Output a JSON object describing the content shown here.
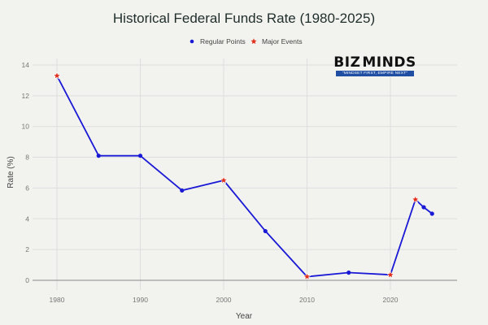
{
  "chart_data": {
    "type": "line",
    "title": "Historical Federal Funds Rate (1980-2025)",
    "xlabel": "Year",
    "ylabel": "Rate (%)",
    "xlim": [
      1977,
      2028
    ],
    "ylim": [
      0,
      14
    ],
    "x_ticks": [
      1980,
      1990,
      2000,
      2010,
      2020
    ],
    "y_ticks": [
      0,
      2,
      4,
      6,
      8,
      10,
      12,
      14
    ],
    "grid": true,
    "legend_position": "top",
    "legend": [
      {
        "label": "Regular Points",
        "marker": "circle",
        "color": "#1a1ad6"
      },
      {
        "label": "Major Events",
        "marker": "star",
        "color": "#e0301e"
      }
    ],
    "line_color": "#1a1ad6",
    "points": [
      {
        "x": 1980,
        "y": 13.3,
        "type": "event"
      },
      {
        "x": 1985,
        "y": 8.1,
        "type": "regular"
      },
      {
        "x": 1990,
        "y": 8.1,
        "type": "regular"
      },
      {
        "x": 1995,
        "y": 5.84,
        "type": "regular"
      },
      {
        "x": 2000,
        "y": 6.5,
        "type": "event"
      },
      {
        "x": 2005,
        "y": 3.2,
        "type": "regular"
      },
      {
        "x": 2010,
        "y": 0.24,
        "type": "event"
      },
      {
        "x": 2015,
        "y": 0.5,
        "type": "regular"
      },
      {
        "x": 2020,
        "y": 0.36,
        "type": "event"
      },
      {
        "x": 2023,
        "y": 5.25,
        "type": "event"
      },
      {
        "x": 2024,
        "y": 4.75,
        "type": "regular"
      },
      {
        "x": 2025,
        "y": 4.33,
        "type": "regular"
      }
    ]
  },
  "logo": {
    "word_left": "BIZ",
    "word_right": "MINDS",
    "tagline": "\"MINDSET FIRST, EMPIRE NEXT\""
  }
}
